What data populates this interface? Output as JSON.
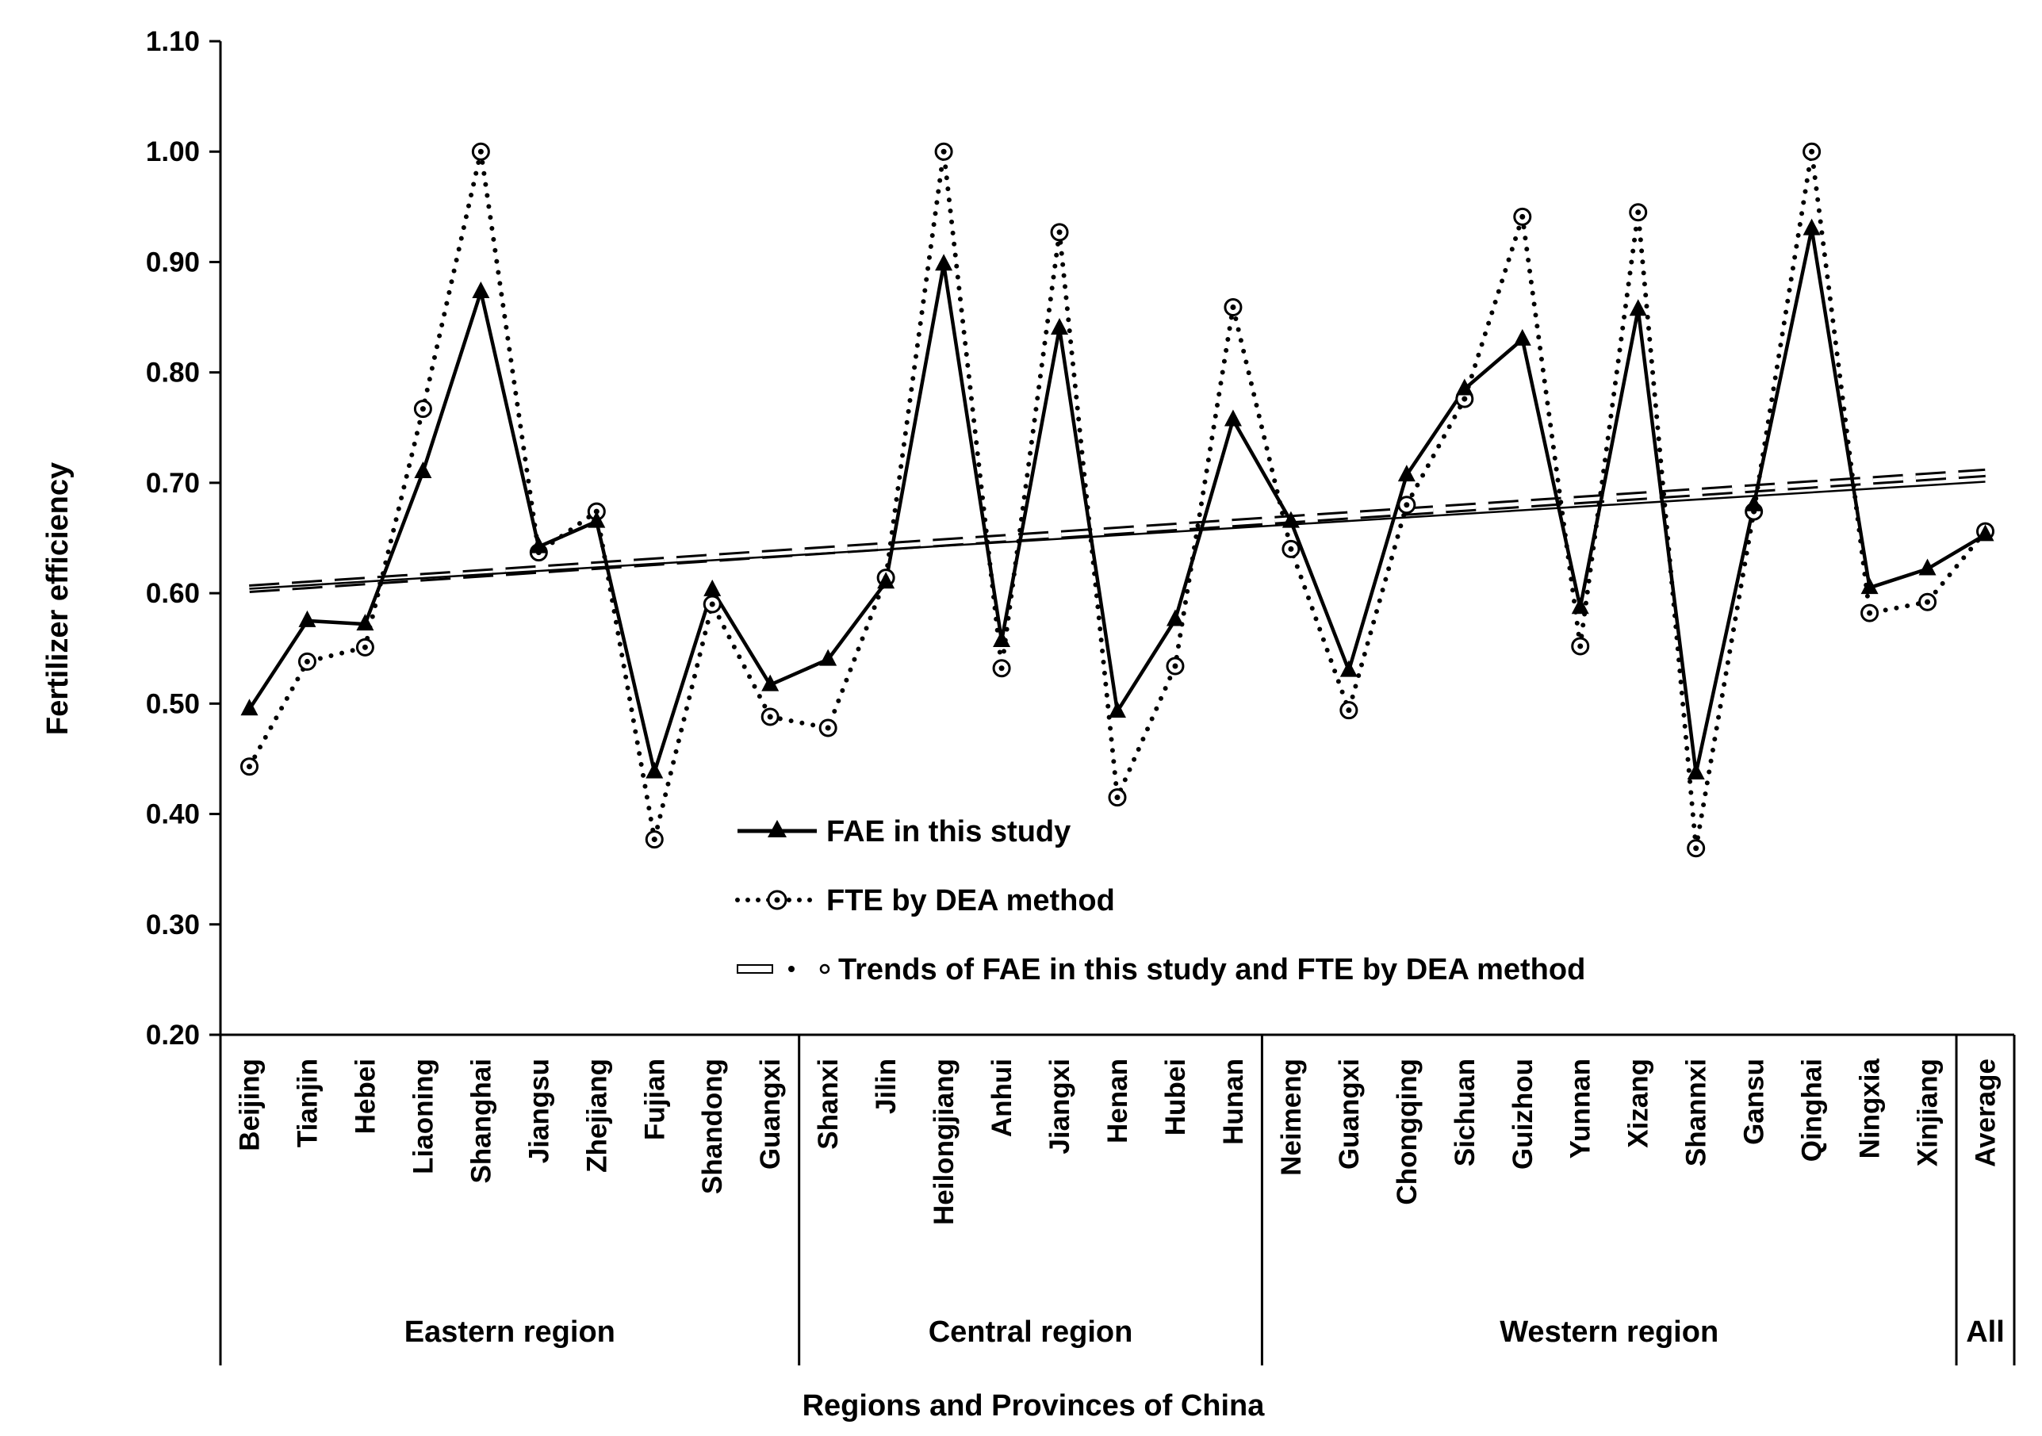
{
  "chart_data": {
    "type": "line",
    "xlabel": "Regions and Provinces of China",
    "ylabel": "Fertilizer efficiency",
    "ylim": [
      0.2,
      1.1
    ],
    "yticks": [
      "0.20",
      "0.30",
      "0.40",
      "0.50",
      "0.60",
      "0.70",
      "0.80",
      "0.90",
      "1.00",
      "1.10"
    ],
    "categories": [
      "Beijing",
      "Tianjin",
      "Hebei",
      "Liaoning",
      "Shanghai",
      "Jiangsu",
      "Zhejiang",
      "Fujian",
      "Shandong",
      "Guangxi",
      "Shanxi",
      "Jilin",
      "Heilongjiang",
      "Anhui",
      "Jiangxi",
      "Henan",
      "Hubei",
      "Hunan",
      "Neimeng",
      "Guangxi",
      "Chongqing",
      "Sichuan",
      "Guizhou",
      "Yunnan",
      "Xizang",
      "Shannxi",
      "Gansu",
      "Qinghai",
      "Ningxia",
      "Xinjiang",
      "Average"
    ],
    "regions": [
      {
        "label": "Eastern region",
        "start": 0,
        "end": 9
      },
      {
        "label": "Central region",
        "start": 10,
        "end": 17
      },
      {
        "label": "Western region",
        "start": 18,
        "end": 29
      },
      {
        "label": "All",
        "start": 30,
        "end": 30
      }
    ],
    "series": [
      {
        "name": "FAE in this study",
        "style": "solid-triangle",
        "values": [
          0.495,
          0.575,
          0.572,
          0.71,
          0.873,
          0.642,
          0.665,
          0.438,
          0.603,
          0.517,
          0.54,
          0.61,
          0.898,
          0.557,
          0.84,
          0.493,
          0.576,
          0.757,
          0.665,
          0.53,
          0.707,
          0.785,
          0.83,
          0.587,
          0.857,
          0.437,
          0.68,
          0.93,
          0.605,
          0.622,
          0.653
        ]
      },
      {
        "name": "FTE by DEA method",
        "style": "dotted-circle",
        "values": [
          0.443,
          0.538,
          0.551,
          0.767,
          1.0,
          0.637,
          0.674,
          0.377,
          0.59,
          0.488,
          0.478,
          0.614,
          1.0,
          0.532,
          0.927,
          0.415,
          0.534,
          0.859,
          0.64,
          0.494,
          0.68,
          0.776,
          0.941,
          0.552,
          0.945,
          0.369,
          0.674,
          1.0,
          0.582,
          0.592,
          0.656
        ]
      }
    ],
    "trend": {
      "name": "Trends of FAE in this study and FTE by DEA method",
      "fae": [
        0.604,
        0.701
      ],
      "fte": [
        0.604,
        0.709
      ]
    }
  }
}
